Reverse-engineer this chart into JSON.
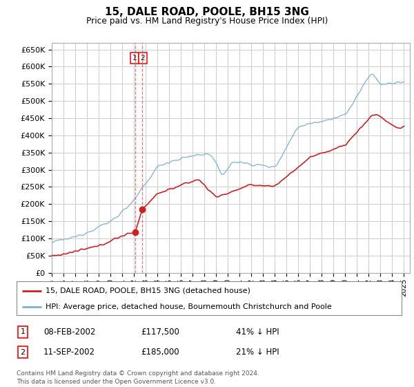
{
  "title": "15, DALE ROAD, POOLE, BH15 3NG",
  "subtitle": "Price paid vs. HM Land Registry's House Price Index (HPI)",
  "ylabel_ticks": [
    "£0",
    "£50K",
    "£100K",
    "£150K",
    "£200K",
    "£250K",
    "£300K",
    "£350K",
    "£400K",
    "£450K",
    "£500K",
    "£550K",
    "£600K",
    "£650K"
  ],
  "ytick_values": [
    0,
    50000,
    100000,
    150000,
    200000,
    250000,
    300000,
    350000,
    400000,
    450000,
    500000,
    550000,
    600000,
    650000
  ],
  "ylim": [
    0,
    670000
  ],
  "x_start_year": 1995,
  "x_end_year": 2025,
  "hpi_color": "#7bafd4",
  "price_color": "#cc2222",
  "legend_label_price": "15, DALE ROAD, POOLE, BH15 3NG (detached house)",
  "legend_label_hpi": "HPI: Average price, detached house, Bournemouth Christchurch and Poole",
  "transaction1_date": "08-FEB-2002",
  "transaction1_price": "£117,500",
  "transaction1_hpi": "41% ↓ HPI",
  "transaction2_date": "11-SEP-2002",
  "transaction2_price": "£185,000",
  "transaction2_hpi": "21% ↓ HPI",
  "footer": "Contains HM Land Registry data © Crown copyright and database right 2024.\nThis data is licensed under the Open Government Licence v3.0.",
  "bg_color": "#ffffff",
  "grid_color": "#cccccc",
  "t1_year": 2002.1,
  "t2_year": 2002.7,
  "t1_price": 117500,
  "t2_price": 185000
}
